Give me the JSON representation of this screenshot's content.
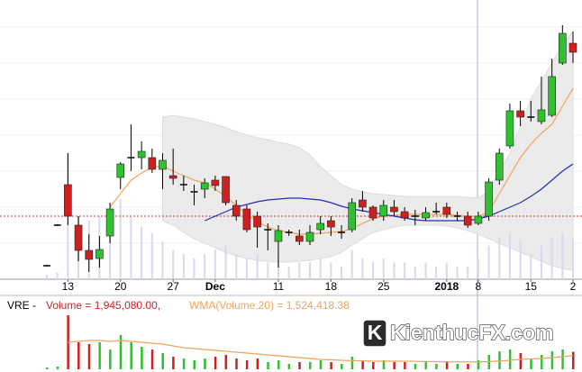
{
  "chart_data": {
    "type": "candlestick",
    "categories": [
      null,
      null,
      "13",
      null,
      null,
      null,
      null,
      "20",
      null,
      null,
      null,
      null,
      "27",
      null,
      null,
      null,
      "Dec",
      null,
      null,
      null,
      null,
      null,
      "11",
      null,
      null,
      null,
      null,
      "18",
      null,
      null,
      null,
      null,
      "25",
      null,
      null,
      null,
      null,
      null,
      "2018",
      null,
      null,
      "8",
      null,
      null,
      null,
      null,
      "15",
      null,
      null,
      null,
      "2"
    ],
    "open": [
      15,
      60,
      105,
      60,
      32,
      23,
      48,
      113,
      135,
      135,
      135,
      122,
      115,
      105,
      97,
      100,
      110,
      114,
      82,
      78,
      70,
      55,
      42,
      52,
      48,
      42,
      55,
      65,
      52,
      55,
      88,
      80,
      70,
      80,
      75,
      70,
      68,
      75,
      80,
      70,
      70,
      62,
      70,
      110,
      148,
      187,
      180,
      175,
      182,
      240,
      262
    ],
    "high": [
      16,
      61,
      140,
      70,
      50,
      48,
      85,
      130,
      172,
      153,
      145,
      140,
      145,
      115,
      105,
      112,
      115,
      114,
      88,
      82,
      75,
      62,
      60,
      55,
      55,
      60,
      70,
      70,
      60,
      90,
      98,
      82,
      88,
      88,
      80,
      77,
      80,
      85,
      85,
      75,
      75,
      75,
      112,
      145,
      195,
      198,
      198,
      225,
      245,
      282,
      275
    ],
    "low": [
      14,
      59,
      60,
      20,
      8,
      13,
      40,
      100,
      120,
      122,
      118,
      100,
      105,
      98,
      82,
      90,
      98,
      82,
      65,
      52,
      35,
      32,
      13,
      48,
      38,
      38,
      50,
      48,
      45,
      52,
      75,
      65,
      65,
      70,
      65,
      60,
      65,
      72,
      68,
      65,
      57,
      60,
      65,
      105,
      145,
      170,
      175,
      172,
      180,
      238,
      240
    ],
    "close": [
      15,
      60,
      70,
      32,
      22,
      33,
      78,
      128,
      135,
      142,
      122,
      132,
      112,
      105,
      97,
      107,
      104,
      85,
      70,
      55,
      58,
      55,
      54,
      52,
      42,
      52,
      62,
      58,
      52,
      85,
      80,
      68,
      82,
      75,
      68,
      70,
      74,
      75,
      72,
      70,
      60,
      70,
      108,
      140,
      187,
      180,
      180,
      188,
      225,
      273,
      252
    ],
    "up_color": "#2fc22f",
    "down_color": "#d01f1f",
    "ylim": [
      0,
      310
    ],
    "ma_short": {
      "color": "#f2a25a",
      "values": [
        null,
        null,
        null,
        null,
        null,
        null,
        80,
        95,
        110,
        118,
        124,
        126,
        120,
        115,
        110,
        107,
        100,
        92,
        82,
        72,
        64,
        58,
        54,
        52,
        50,
        50,
        51,
        52,
        53,
        56,
        62,
        67,
        70,
        71,
        72,
        72,
        72,
        72,
        72,
        71,
        70,
        70,
        75,
        95,
        115,
        135,
        150,
        162,
        172,
        192,
        212
      ]
    },
    "ma_long": {
      "color": "#1f2fb5",
      "values": [
        null,
        null,
        null,
        null,
        null,
        null,
        null,
        null,
        null,
        null,
        null,
        null,
        null,
        null,
        null,
        65,
        70,
        75,
        80,
        83,
        86,
        88,
        89,
        90,
        90,
        89,
        88,
        85,
        81,
        78,
        76,
        74,
        72,
        70,
        68,
        66,
        65,
        65,
        65,
        65,
        65,
        67,
        70,
        75,
        80,
        85,
        92,
        100,
        110,
        120,
        128
      ]
    },
    "band": {
      "color": "#ebebeb",
      "upper": [
        null,
        null,
        null,
        null,
        null,
        null,
        null,
        null,
        null,
        null,
        null,
        180,
        182,
        180,
        178,
        175,
        172,
        168,
        164,
        160,
        157,
        155,
        152,
        150,
        146,
        138,
        125,
        115,
        105,
        100,
        97,
        95,
        94,
        93,
        92,
        92,
        92,
        92,
        92,
        92,
        91,
        90,
        98,
        120,
        140,
        170,
        200,
        220,
        240,
        260,
        275
      ],
      "lower": [
        null,
        null,
        null,
        null,
        null,
        null,
        null,
        null,
        null,
        null,
        null,
        65,
        60,
        52,
        45,
        40,
        35,
        30,
        26,
        23,
        21,
        20,
        19,
        19,
        20,
        21,
        23,
        25,
        30,
        38,
        45,
        52,
        55,
        58,
        60,
        60,
        60,
        60,
        59,
        57,
        54,
        50,
        45,
        40,
        35,
        30,
        25,
        20,
        15,
        12,
        10
      ]
    },
    "reference_line": {
      "value": 70,
      "color": "#c83232"
    },
    "volume": {
      "values": [
        200000,
        300000,
        6000000,
        3000000,
        2800000,
        3000000,
        2200000,
        3800000,
        3000000,
        2500000,
        2200000,
        1800000,
        1400000,
        1200000,
        1000000,
        1200000,
        1400000,
        1600000,
        1200000,
        1000000,
        1200000,
        800000,
        1000000,
        600000,
        800000,
        800000,
        1000000,
        800000,
        600000,
        1400000,
        1000000,
        800000,
        1000000,
        800000,
        800000,
        600000,
        800000,
        600000,
        800000,
        600000,
        600000,
        1000000,
        1600000,
        2000000,
        2200000,
        1800000,
        1200000,
        1600000,
        2000000,
        2200000,
        1945080
      ],
      "ylim": [
        0,
        6000000
      ],
      "overlay_color": "#d8d8ee"
    },
    "wma_volume": {
      "color": "#f2a25a",
      "values": [
        null,
        null,
        3000000,
        3100000,
        3200000,
        3200000,
        3100000,
        3200000,
        3100000,
        3000000,
        2900000,
        2800000,
        2600000,
        2400000,
        2300000,
        2200000,
        2100000,
        2000000,
        1900000,
        1800000,
        1700000,
        1600000,
        1500000,
        1400000,
        1300000,
        1200000,
        1100000,
        1050000,
        1000000,
        950000,
        950000,
        900000,
        900000,
        900000,
        900000,
        880000,
        860000,
        850000,
        840000,
        830000,
        820000,
        820000,
        850000,
        920000,
        1000000,
        1100000,
        1150000,
        1200000,
        1300000,
        1400000,
        1524418.38
      ]
    },
    "legend": {
      "symbol": "VRE -",
      "volume_text": "Volume = 1,945,080.00,",
      "wma_text": "WMA(Volume,20) = 1,524,418.38"
    },
    "watermark": {
      "icon": "K",
      "text": "KienthucFX.com"
    }
  }
}
